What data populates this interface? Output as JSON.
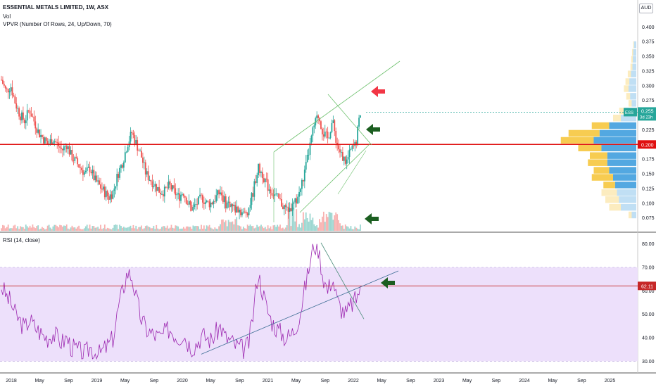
{
  "header": {
    "symbol_line": "ESSENTIAL METALS LIMITED, 1W, ASX",
    "vol_label": "Vol",
    "vpvr_label": "VPVR (Number Of Rows, 24, Up/Down, 70)",
    "currency": "AUD"
  },
  "rsi_legend": "RSI (14, close)",
  "price_badge": {
    "ticker": "ESS",
    "price": "0.255",
    "countdown": "3d 23h"
  },
  "price_axis_ticks": [
    "0.400",
    "0.375",
    "0.350",
    "0.325",
    "0.300",
    "0.275",
    "0.250",
    "0.225",
    "0.200",
    "0.175",
    "0.150",
    "0.125",
    "0.100",
    "0.075"
  ],
  "price_hline_label": "0.200",
  "rsi_axis_ticks": [
    "80.00",
    "70.00",
    "60.00",
    "50.00",
    "40.00",
    "30.00"
  ],
  "rsi_hline_label": "62.11",
  "time_axis_ticks": [
    "2018",
    "May",
    "Sep",
    "2019",
    "May",
    "Sep",
    "2020",
    "May",
    "Sep",
    "2021",
    "May",
    "Sep",
    "2022",
    "May",
    "Sep",
    "2023",
    "May",
    "Sep",
    "2024",
    "May",
    "Sep",
    "2025"
  ],
  "colors": {
    "up": "#26a69a",
    "down": "#ef5350",
    "support_line": "#e01010",
    "channel": "#6cc06c",
    "rsi_line": "#9c27b0",
    "rsi_band": "#ede0fb",
    "arrow_red": "#f23645",
    "arrow_green": "#1b5e20",
    "vp_up": "#f7c948",
    "vp_down": "#4aa3df"
  },
  "chart_data": [
    {
      "type": "candlestick",
      "title": "ESSENTIAL METALS LIMITED, 1W, ASX",
      "ylim": [
        0.065,
        0.41
      ],
      "x_range": [
        "2018-01",
        "2025-06"
      ],
      "horizontal_line": 0.2,
      "last_price": 0.255,
      "weekly_close_series": [
        0.31,
        0.29,
        0.3,
        0.27,
        0.25,
        0.24,
        0.26,
        0.24,
        0.22,
        0.21,
        0.2,
        0.21,
        0.2,
        0.19,
        0.2,
        0.18,
        0.17,
        0.16,
        0.15,
        0.16,
        0.14,
        0.13,
        0.12,
        0.11,
        0.12,
        0.15,
        0.17,
        0.2,
        0.22,
        0.2,
        0.18,
        0.15,
        0.14,
        0.13,
        0.12,
        0.12,
        0.13,
        0.12,
        0.11,
        0.12,
        0.1,
        0.09,
        0.1,
        0.11,
        0.1,
        0.1,
        0.11,
        0.12,
        0.1,
        0.1,
        0.09,
        0.09,
        0.08,
        0.09,
        0.12,
        0.16,
        0.15,
        0.13,
        0.12,
        0.11,
        0.1,
        0.09,
        0.09,
        0.1,
        0.12,
        0.15,
        0.19,
        0.23,
        0.25,
        0.22,
        0.21,
        0.24,
        0.2,
        0.18,
        0.17,
        0.19,
        0.2,
        0.255
      ]
    },
    {
      "type": "line",
      "title": "RSI (14, close)",
      "ylim": [
        28,
        82
      ],
      "band": [
        30,
        70
      ],
      "horizontal_line": 62.11,
      "last_value": 62.11,
      "series": [
        {
          "name": "RSI (14, close)",
          "values": [
            62,
            58,
            55,
            50,
            47,
            44,
            48,
            45,
            43,
            41,
            40,
            42,
            40,
            38,
            40,
            36,
            35,
            34,
            33,
            36,
            34,
            33,
            35,
            37,
            40,
            52,
            60,
            68,
            66,
            56,
            48,
            44,
            42,
            41,
            40,
            42,
            44,
            42,
            40,
            42,
            38,
            36,
            38,
            41,
            40,
            39,
            42,
            45,
            40,
            39,
            37,
            36,
            35,
            37,
            50,
            68,
            60,
            52,
            47,
            44,
            42,
            40,
            41,
            44,
            50,
            60,
            70,
            80,
            78,
            66,
            60,
            66,
            56,
            52,
            50,
            54,
            56,
            62.11
          ]
        }
      ]
    }
  ]
}
